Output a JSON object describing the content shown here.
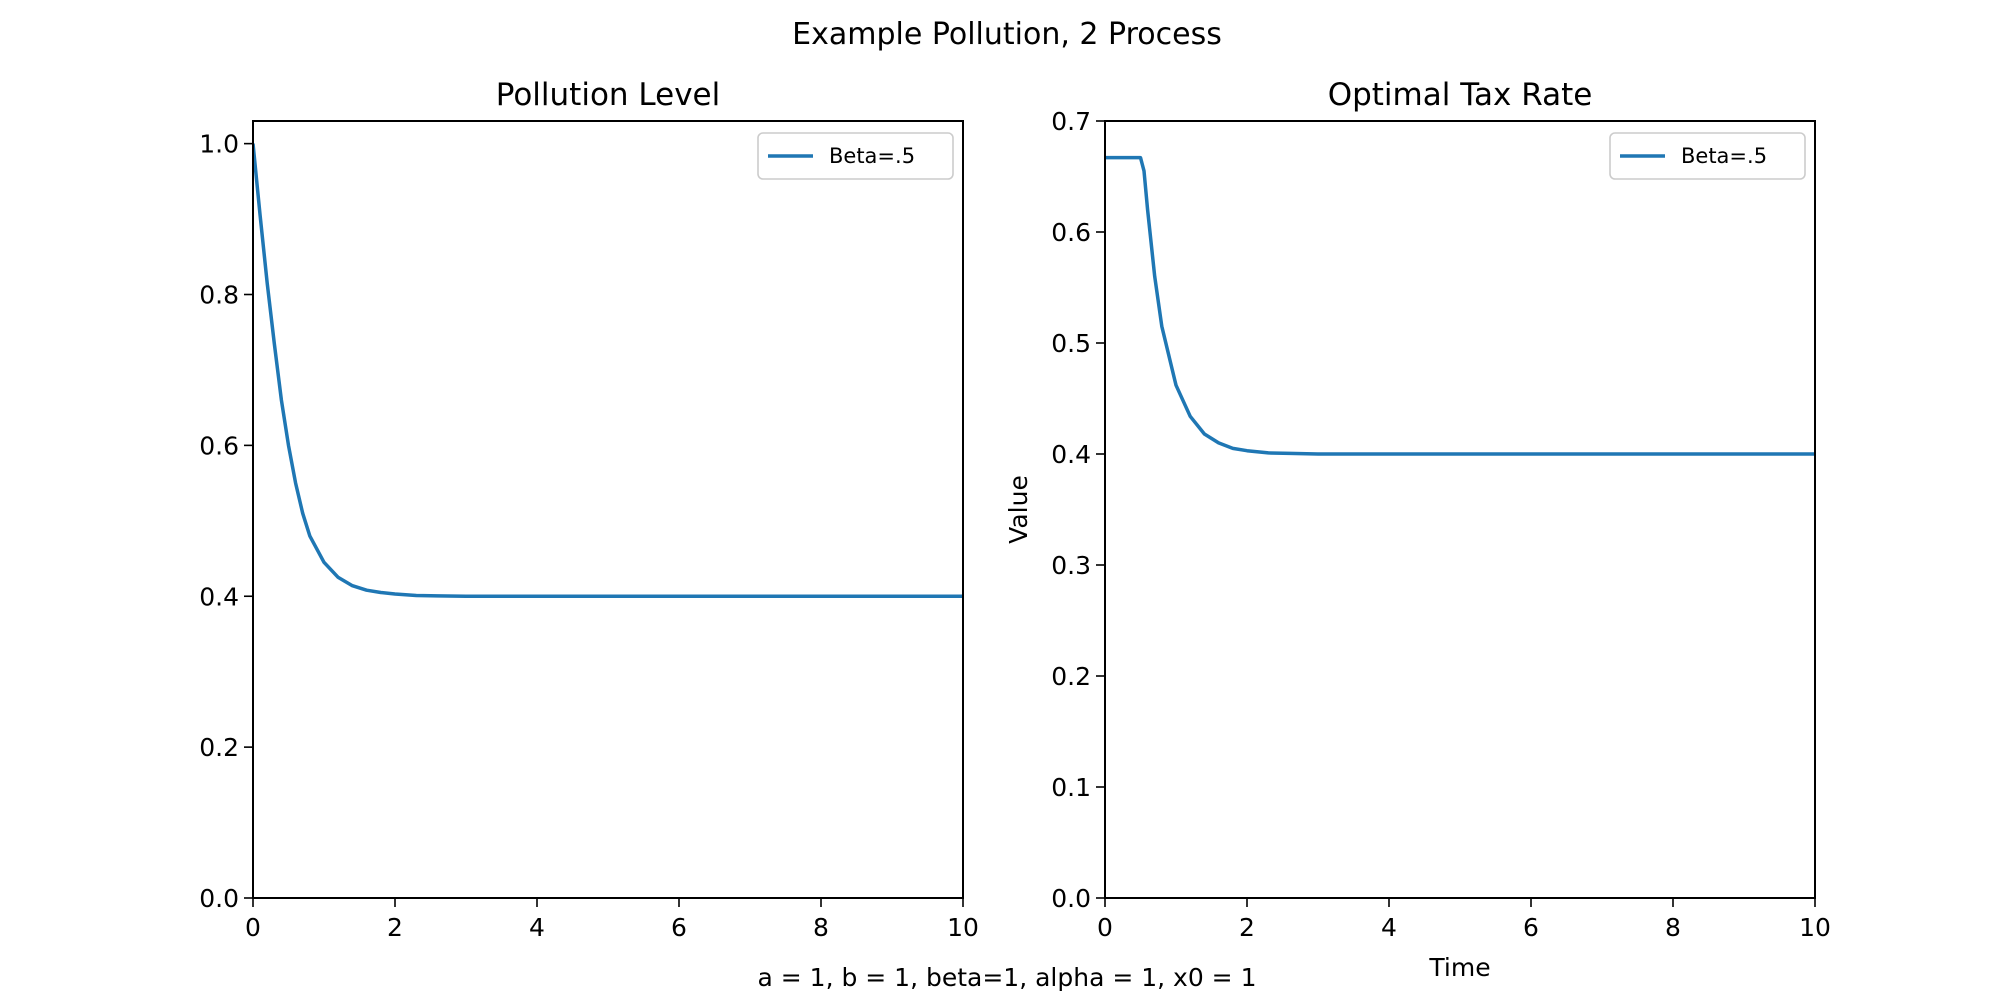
{
  "suptitle": "Example Pollution, 2 Process",
  "footnote": "a = 1, b = 1, beta=1, alpha = 1, x0 = 1",
  "chart_data": [
    {
      "type": "line",
      "title": "Pollution Level",
      "xlabel": "",
      "ylabel": "",
      "xlim": [
        0,
        10
      ],
      "ylim": [
        0,
        1.03
      ],
      "xticks": [
        0,
        2,
        4,
        6,
        8,
        10
      ],
      "yticks": [
        0.0,
        0.2,
        0.4,
        0.6,
        0.8,
        1.0
      ],
      "ytick_labels": [
        "0.0",
        "0.2",
        "0.4",
        "0.6",
        "0.8",
        "1.0"
      ],
      "grid": false,
      "legend_position": "top-right",
      "series": [
        {
          "name": "Beta=.5",
          "color": "#1f77b4",
          "x": [
            0,
            0.1,
            0.2,
            0.3,
            0.4,
            0.5,
            0.6,
            0.7,
            0.8,
            1.0,
            1.2,
            1.4,
            1.6,
            1.8,
            2.0,
            2.3,
            2.6,
            3.0,
            4.0,
            5.0,
            6.0,
            7.0,
            8.0,
            9.0,
            10.0
          ],
          "y": [
            1.0,
            0.905,
            0.815,
            0.735,
            0.66,
            0.6,
            0.55,
            0.51,
            0.48,
            0.445,
            0.425,
            0.414,
            0.408,
            0.405,
            0.403,
            0.401,
            0.4005,
            0.4,
            0.4,
            0.4,
            0.4,
            0.4,
            0.4,
            0.4,
            0.4
          ]
        }
      ]
    },
    {
      "type": "line",
      "title": "Optimal Tax Rate",
      "xlabel": "Time",
      "ylabel": "Value",
      "xlim": [
        0,
        10
      ],
      "ylim": [
        0,
        0.7
      ],
      "xticks": [
        0,
        2,
        4,
        6,
        8,
        10
      ],
      "yticks": [
        0.0,
        0.1,
        0.2,
        0.3,
        0.4,
        0.5,
        0.6,
        0.7
      ],
      "ytick_labels": [
        "0.0",
        "0.1",
        "0.2",
        "0.3",
        "0.4",
        "0.5",
        "0.6",
        "0.7"
      ],
      "grid": false,
      "legend_position": "top-right",
      "series": [
        {
          "name": "Beta=.5",
          "color": "#1f77b4",
          "x": [
            0,
            0.5,
            0.55,
            0.6,
            0.7,
            0.8,
            1.0,
            1.2,
            1.4,
            1.6,
            1.8,
            2.0,
            2.3,
            2.6,
            3.0,
            4.0,
            5.0,
            6.0,
            7.0,
            8.0,
            9.0,
            10.0
          ],
          "y": [
            0.667,
            0.667,
            0.655,
            0.62,
            0.56,
            0.515,
            0.462,
            0.434,
            0.418,
            0.41,
            0.405,
            0.403,
            0.401,
            0.4005,
            0.4,
            0.4,
            0.4,
            0.4,
            0.4,
            0.4,
            0.4,
            0.4
          ]
        }
      ]
    }
  ]
}
